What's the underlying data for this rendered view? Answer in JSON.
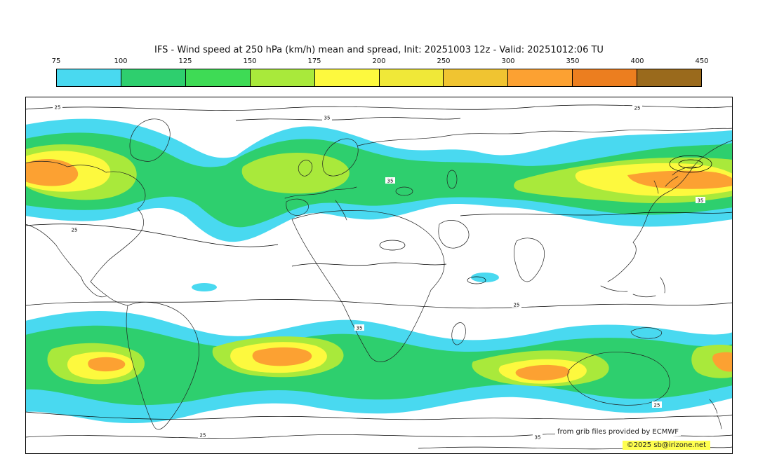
{
  "header": {
    "title": "IFS - Wind speed at 250 hPa (km/h) mean and spread, Init: 20251003 12z - Valid: 20251012:06 TU"
  },
  "colorbar": {
    "tick_labels": [
      "75",
      "100",
      "125",
      "150",
      "175",
      "200",
      "250",
      "300",
      "350",
      "400",
      "450"
    ],
    "segment_colors": [
      "#49d9f0",
      "#2ecf6e",
      "#3edb55",
      "#a9e93b",
      "#fdf93e",
      "#f0e838",
      "#f0c431",
      "#fca132",
      "#ec7e1f",
      "#9a6a1c"
    ],
    "border_color": "#000000"
  },
  "map": {
    "contour_label_25": "25",
    "contour_label_35": "35",
    "attribution_line1": "from grib files provided by ECMWF",
    "attribution_line2": "©2025 sb@irizone.net",
    "attribution_highlight_color": "#ffff4f",
    "land_outline_color": "#222222",
    "wind_band_colors": {
      "cyan": "#49d9f0",
      "green": "#2ecf6e",
      "yellow_green": "#a9e93b",
      "yellow": "#fdf93e",
      "orange": "#fca132"
    }
  }
}
